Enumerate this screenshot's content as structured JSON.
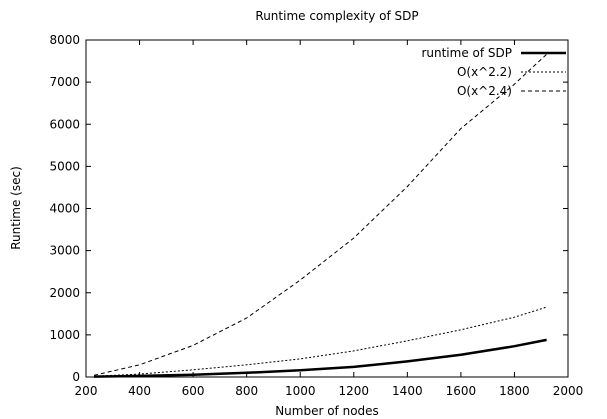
{
  "chart_data": {
    "type": "line",
    "title": "Runtime complexity of SDP",
    "xlabel": "Number of nodes",
    "ylabel": "Runtime (sec)",
    "xlim": [
      200,
      2000
    ],
    "ylim": [
      0,
      8000
    ],
    "xticks": [
      200,
      400,
      600,
      800,
      1000,
      1200,
      1400,
      1600,
      1800,
      2000
    ],
    "yticks": [
      0,
      1000,
      2000,
      3000,
      4000,
      5000,
      6000,
      7000,
      8000
    ],
    "grid": false,
    "legend_position": "top-right",
    "series": [
      {
        "name": "runtime of SDP",
        "style": "solid-bold",
        "x": [
          230,
          400,
          600,
          800,
          1000,
          1200,
          1400,
          1600,
          1800,
          1920
        ],
        "y": [
          10,
          25,
          55,
          100,
          160,
          240,
          370,
          530,
          730,
          880
        ]
      },
      {
        "name": "O(x^2.2)",
        "style": "dotted",
        "x": [
          230,
          400,
          600,
          800,
          1000,
          1200,
          1400,
          1600,
          1800,
          1920
        ],
        "y": [
          20,
          70,
          170,
          290,
          430,
          620,
          860,
          1120,
          1420,
          1660
        ]
      },
      {
        "name": "O(x^2.4)",
        "style": "dashed",
        "x": [
          230,
          400,
          600,
          800,
          1000,
          1200,
          1400,
          1600,
          1800,
          1920
        ],
        "y": [
          40,
          290,
          750,
          1400,
          2300,
          3300,
          4520,
          5900,
          6950,
          7660
        ]
      }
    ]
  }
}
